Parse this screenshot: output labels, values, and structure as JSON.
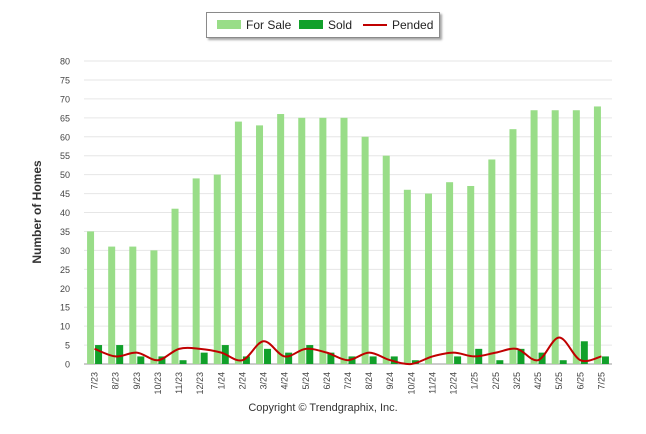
{
  "chart_data": {
    "type": "bar",
    "ylabel": "Number of Homes",
    "xlabel": "",
    "ylim": [
      0,
      80
    ],
    "yticks": [
      0,
      5,
      10,
      15,
      20,
      25,
      30,
      35,
      40,
      45,
      50,
      55,
      60,
      65,
      70,
      75,
      80
    ],
    "grid": true,
    "legend_position": "top-center",
    "categories": [
      "7/23",
      "8/23",
      "9/23",
      "10/23",
      "11/23",
      "12/23",
      "1/24",
      "2/24",
      "3/24",
      "4/24",
      "5/24",
      "6/24",
      "7/24",
      "8/24",
      "9/24",
      "10/24",
      "11/24",
      "12/24",
      "1/25",
      "2/25",
      "3/25",
      "4/25",
      "5/25",
      "6/25",
      "7/25"
    ],
    "series": [
      {
        "name": "For Sale",
        "type": "bar",
        "color": "#99dd88",
        "values": [
          35,
          31,
          31,
          30,
          41,
          49,
          50,
          64,
          63,
          66,
          65,
          65,
          65,
          60,
          55,
          46,
          45,
          48,
          47,
          54,
          62,
          67,
          67,
          67,
          68
        ]
      },
      {
        "name": "Sold",
        "type": "bar",
        "color": "#11a02a",
        "values": [
          5,
          5,
          2,
          2,
          1,
          3,
          5,
          2,
          4,
          3,
          5,
          3,
          2,
          2,
          2,
          1,
          0,
          2,
          4,
          1,
          4,
          3,
          1,
          6,
          2
        ]
      },
      {
        "name": "Pended",
        "type": "line",
        "color": "#c00000",
        "values": [
          4,
          2,
          3,
          1,
          4,
          4,
          3,
          1,
          6,
          2,
          4,
          3,
          1,
          3,
          1,
          0,
          2,
          3,
          2,
          3,
          4,
          1,
          7,
          1,
          2
        ]
      }
    ]
  },
  "footer": {
    "copyright": "Copyright © Trendgraphix, Inc."
  }
}
